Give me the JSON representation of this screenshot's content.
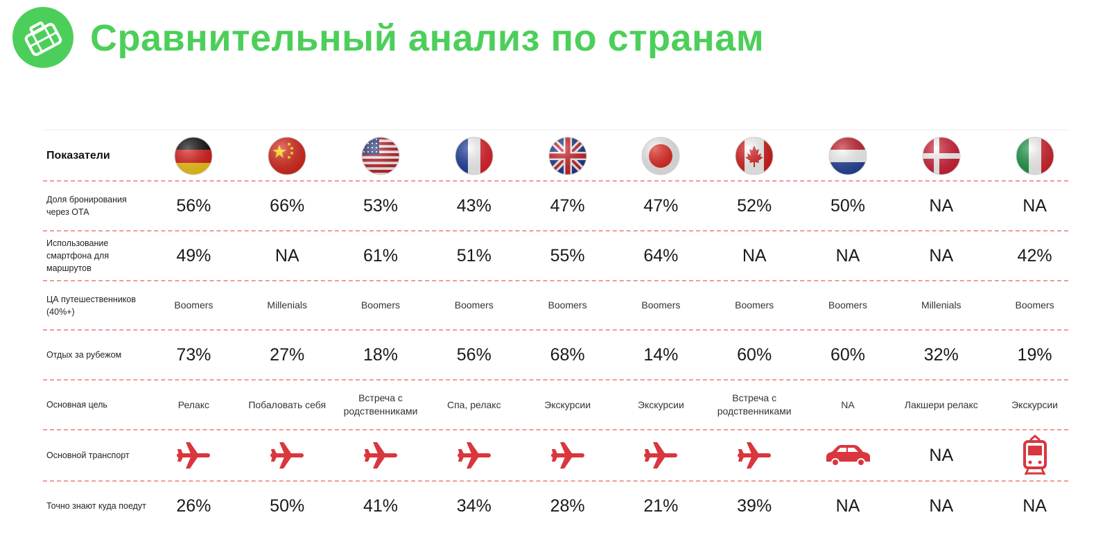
{
  "header": {
    "title": "Сравнительный анализ по странам",
    "logo_icon": "suitcase-icon"
  },
  "colors": {
    "accent_green": "#4ccf5a",
    "transport_red": "#d9363e",
    "divider": "#f09a9a"
  },
  "table": {
    "header_label": "Показатели",
    "countries": [
      {
        "flag": "germany-flag-icon"
      },
      {
        "flag": "china-flag-icon"
      },
      {
        "flag": "usa-flag-icon"
      },
      {
        "flag": "france-flag-icon"
      },
      {
        "flag": "uk-flag-icon"
      },
      {
        "flag": "japan-flag-icon"
      },
      {
        "flag": "canada-flag-icon"
      },
      {
        "flag": "netherlands-flag-icon"
      },
      {
        "flag": "denmark-flag-icon"
      },
      {
        "flag": "italy-flag-icon"
      }
    ],
    "rows": [
      {
        "label": "Доля бронирования через ОТА",
        "style": "big",
        "values": [
          "56%",
          "66%",
          "53%",
          "43%",
          "47%",
          "47%",
          "52%",
          "50%",
          "NA",
          "NA"
        ]
      },
      {
        "label": "Использование смартфона для маршрутов",
        "style": "big",
        "values": [
          "49%",
          "NA",
          "61%",
          "51%",
          "55%",
          "64%",
          "NA",
          "NA",
          "NA",
          "42%"
        ]
      },
      {
        "label": "ЦА путешественников (40%+)",
        "style": "small",
        "values": [
          "Boomers",
          "Millenials",
          "Boomers",
          "Boomers",
          "Boomers",
          "Boomers",
          "Boomers",
          "Boomers",
          "Millenials",
          "Boomers"
        ]
      },
      {
        "label": "Отдых за рубежом",
        "style": "big",
        "values": [
          "73%",
          "27%",
          "18%",
          "56%",
          "68%",
          "14%",
          "60%",
          "60%",
          "32%",
          "19%"
        ]
      },
      {
        "label": "Основная цель",
        "style": "small",
        "values": [
          "Релакс",
          "Побаловать себя",
          "Встреча с родственниками",
          "Спа, релакс",
          "Экскурсии",
          "Экскурсии",
          "Встреча с родственниками",
          "NA",
          "Лакшери релакс",
          "Экскурсии"
        ]
      },
      {
        "label": "Основной транспорт",
        "style": "icon",
        "values": [
          "airplane-icon",
          "airplane-icon",
          "airplane-icon",
          "airplane-icon",
          "airplane-icon",
          "airplane-icon",
          "airplane-icon",
          "car-icon",
          "NA",
          "train-icon"
        ]
      },
      {
        "label": "Точно знают куда поедут",
        "style": "big",
        "values": [
          "26%",
          "50%",
          "41%",
          "34%",
          "28%",
          "21%",
          "39%",
          "NA",
          "NA",
          "NA"
        ]
      }
    ]
  }
}
